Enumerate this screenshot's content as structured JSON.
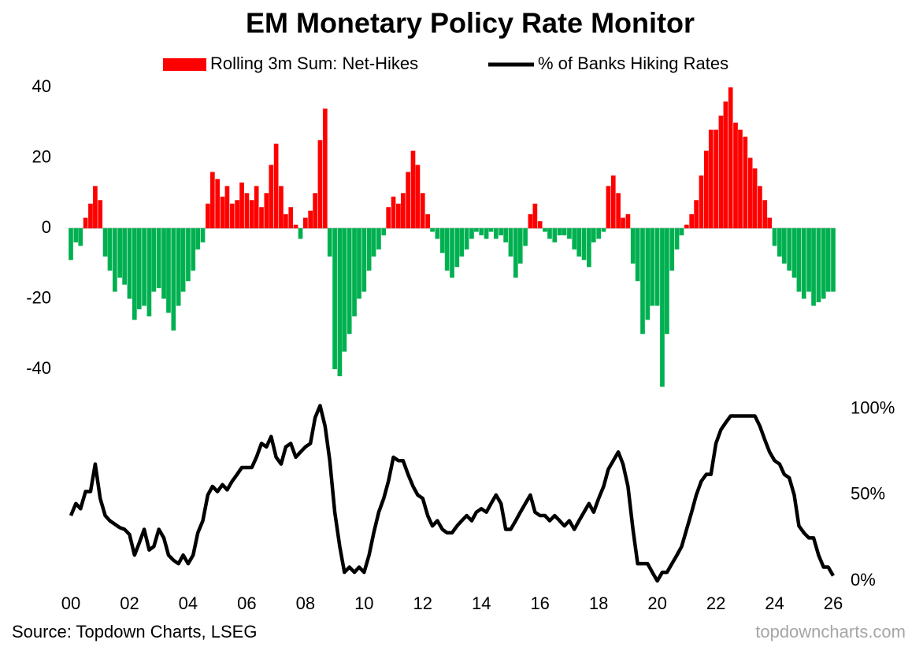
{
  "chart_data": {
    "type": "bar",
    "title": "EM Monetary Policy Rate Monitor",
    "source": "Source: Topdown Charts, LSEG",
    "watermark": "topdowncharts.com",
    "x": [
      2000,
      2000.17,
      2000.33,
      2000.5,
      2000.67,
      2000.83,
      2001,
      2001.17,
      2001.33,
      2001.5,
      2001.67,
      2001.83,
      2002,
      2002.17,
      2002.33,
      2002.5,
      2002.67,
      2002.83,
      2003,
      2003.17,
      2003.33,
      2003.5,
      2003.67,
      2003.83,
      2004,
      2004.17,
      2004.33,
      2004.5,
      2004.67,
      2004.83,
      2005,
      2005.17,
      2005.33,
      2005.5,
      2005.67,
      2005.83,
      2006,
      2006.17,
      2006.33,
      2006.5,
      2006.67,
      2006.83,
      2007,
      2007.17,
      2007.33,
      2007.5,
      2007.67,
      2007.83,
      2008,
      2008.17,
      2008.33,
      2008.5,
      2008.67,
      2008.83,
      2009,
      2009.17,
      2009.33,
      2009.5,
      2009.67,
      2009.83,
      2010,
      2010.17,
      2010.33,
      2010.5,
      2010.67,
      2010.83,
      2011,
      2011.17,
      2011.33,
      2011.5,
      2011.67,
      2011.83,
      2012,
      2012.17,
      2012.33,
      2012.5,
      2012.67,
      2012.83,
      2013,
      2013.17,
      2013.33,
      2013.5,
      2013.67,
      2013.83,
      2014,
      2014.17,
      2014.33,
      2014.5,
      2014.67,
      2014.83,
      2015,
      2015.17,
      2015.33,
      2015.5,
      2015.67,
      2015.83,
      2016,
      2016.17,
      2016.33,
      2016.5,
      2016.67,
      2016.83,
      2017,
      2017.17,
      2017.33,
      2017.5,
      2017.67,
      2017.83,
      2018,
      2018.17,
      2018.33,
      2018.5,
      2018.67,
      2018.83,
      2019,
      2019.17,
      2019.33,
      2019.5,
      2019.67,
      2019.83,
      2020,
      2020.17,
      2020.33,
      2020.5,
      2020.67,
      2020.83,
      2021,
      2021.17,
      2021.33,
      2021.5,
      2021.67,
      2021.83,
      2022,
      2022.17,
      2022.33,
      2022.5,
      2022.67,
      2022.83,
      2023,
      2023.17,
      2023.33,
      2023.5,
      2023.67,
      2023.83,
      2024,
      2024.17,
      2024.33,
      2024.5,
      2024.67,
      2024.83,
      2025,
      2025.17,
      2025.33,
      2025.5,
      2025.67,
      2025.83,
      2026
    ],
    "series": [
      {
        "name": "Rolling 3m Sum: Net-Hikes",
        "type": "bar",
        "color": "#ff0000",
        "negative_color": "#00b050",
        "values": [
          -9,
          -4,
          -5,
          3,
          7,
          12,
          8,
          -8,
          -12,
          -18,
          -14,
          -16,
          -20,
          -26,
          -23,
          -22,
          -25,
          -18,
          -17,
          -20,
          -24,
          -29,
          -22,
          -18,
          -15,
          -12,
          -6,
          -4,
          7,
          16,
          14,
          9,
          12,
          7,
          8,
          13,
          10,
          8,
          12,
          6,
          10,
          18,
          24,
          12,
          4,
          6,
          1,
          -3,
          3,
          5,
          10,
          25,
          34,
          -8,
          -40,
          -42,
          -35,
          -30,
          -25,
          -20,
          -18,
          -12,
          -8,
          -6,
          -2,
          6,
          9,
          7,
          10,
          16,
          22,
          18,
          10,
          4,
          -1,
          -3,
          -7,
          -12,
          -14,
          -11,
          -8,
          -6,
          -3,
          -1,
          -2,
          -3,
          -1,
          -3,
          -2,
          -4,
          -8,
          -14,
          -10,
          -5,
          4,
          7,
          2,
          -1,
          -3,
          -4,
          -2,
          -2,
          -3,
          -6,
          -8,
          -9,
          -11,
          -4,
          -3,
          -1,
          12,
          15,
          10,
          3,
          4,
          -10,
          -15,
          -30,
          -26,
          -22,
          -22,
          -45,
          -30,
          -12,
          -6,
          -2,
          1,
          4,
          8,
          15,
          22,
          28,
          28,
          32,
          36,
          40,
          30,
          28,
          26,
          20,
          17,
          12,
          8,
          3,
          -5,
          -8,
          -10,
          -12,
          -14,
          -18,
          -20,
          -18,
          -22,
          -21,
          -20,
          -18,
          -18
        ]
      },
      {
        "name": "% of Banks Hiking Rates",
        "type": "line",
        "color": "#000000",
        "axis": "y2",
        "values": [
          38,
          45,
          42,
          52,
          52,
          68,
          48,
          38,
          35,
          33,
          31,
          30,
          27,
          15,
          22,
          30,
          18,
          20,
          30,
          25,
          15,
          12,
          10,
          15,
          10,
          15,
          28,
          35,
          50,
          55,
          52,
          56,
          53,
          58,
          62,
          66,
          66,
          66,
          72,
          80,
          78,
          84,
          72,
          68,
          78,
          80,
          72,
          75,
          78,
          80,
          95,
          102,
          90,
          70,
          40,
          20,
          5,
          8,
          5,
          8,
          5,
          15,
          28,
          40,
          48,
          58,
          72,
          70,
          70,
          62,
          55,
          50,
          48,
          38,
          32,
          35,
          30,
          28,
          28,
          32,
          35,
          38,
          35,
          40,
          42,
          40,
          45,
          50,
          45,
          30,
          30,
          35,
          40,
          45,
          50,
          40,
          38,
          38,
          35,
          38,
          35,
          32,
          35,
          30,
          35,
          40,
          45,
          40,
          48,
          55,
          65,
          70,
          75,
          68,
          55,
          30,
          10,
          10,
          10,
          5,
          0,
          5,
          5,
          10,
          15,
          20,
          30,
          40,
          50,
          58,
          62,
          62,
          80,
          88,
          92,
          96,
          96,
          96,
          96,
          96,
          96,
          90,
          82,
          75,
          70,
          68,
          62,
          60,
          50,
          32,
          28,
          25,
          25,
          15,
          8,
          8,
          3
        ]
      }
    ],
    "xlim": [
      2000,
      2026
    ],
    "xticks": [
      {
        "value": 2000,
        "label": "00"
      },
      {
        "value": 2002,
        "label": "02"
      },
      {
        "value": 2004,
        "label": "04"
      },
      {
        "value": 2006,
        "label": "06"
      },
      {
        "value": 2008,
        "label": "08"
      },
      {
        "value": 2010,
        "label": "10"
      },
      {
        "value": 2012,
        "label": "12"
      },
      {
        "value": 2014,
        "label": "14"
      },
      {
        "value": 2016,
        "label": "16"
      },
      {
        "value": 2018,
        "label": "18"
      },
      {
        "value": 2020,
        "label": "20"
      },
      {
        "value": 2022,
        "label": "22"
      },
      {
        "value": 2024,
        "label": "24"
      },
      {
        "value": 2026,
        "label": "26"
      }
    ],
    "ylim": [
      -47,
      43
    ],
    "yticks": [
      -40,
      -20,
      0,
      20,
      40
    ],
    "y2lim": [
      0,
      104
    ],
    "y2ticks": [
      {
        "value": 0,
        "label": "0%"
      },
      {
        "value": 50,
        "label": "50%"
      },
      {
        "value": 100,
        "label": "100%"
      }
    ]
  }
}
